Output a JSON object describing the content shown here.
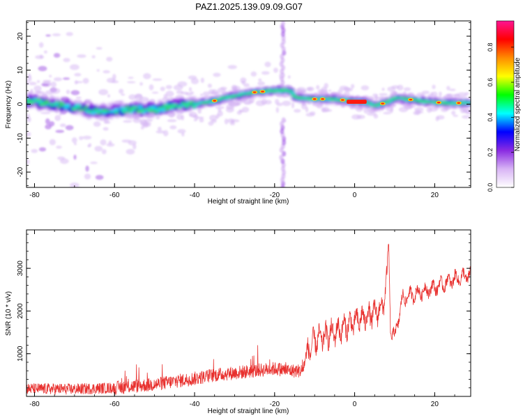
{
  "title": "PAZ1.2025.139.09.09.G07",
  "chart_data": [
    {
      "type": "heatmap",
      "xlabel": "Height of straight line (km)",
      "ylabel": "Frequency (Hz)",
      "xlim": [
        -82,
        29
      ],
      "ylim": [
        -24.5,
        24.5
      ],
      "xticks": [
        -80,
        -60,
        -40,
        -20,
        0,
        20
      ],
      "yticks": [
        -20,
        -10,
        0,
        10,
        20
      ],
      "ridge": {
        "x": [
          -82,
          -75,
          -70,
          -65,
          -60,
          -55,
          -50,
          -45,
          -40,
          -35,
          -30,
          -25,
          -20,
          -16,
          -15,
          -10,
          -5,
          0,
          3,
          5,
          8,
          10,
          15,
          20,
          25,
          29
        ],
        "freq": [
          1,
          0,
          -1,
          -2,
          -2,
          -1.5,
          -1.5,
          -0.5,
          0,
          1,
          2.5,
          3.5,
          4,
          4,
          2,
          1.5,
          1.5,
          0.8,
          0.5,
          -0.5,
          0.5,
          1.8,
          1.2,
          0.5,
          0.3,
          0.5
        ]
      },
      "colorbar": {
        "label": "Normalized spectral amplitude",
        "min": 0.0,
        "max": 0.95,
        "ticks": [
          "0.0",
          "0.2",
          "0.4",
          "0.6",
          "0.8"
        ],
        "colormap": [
          "#ffffff",
          "#d8b4f5",
          "#8a2be2",
          "#0000ff",
          "#00ffff",
          "#00ff00",
          "#ffff00",
          "#ff8c00",
          "#ff0000",
          "#ff1493"
        ]
      }
    },
    {
      "type": "line",
      "xlabel": "Height of straight line (km)",
      "ylabel": "SNR (10 * v/v)",
      "xlim": [
        -82,
        29
      ],
      "ylim": [
        0,
        3900
      ],
      "xticks": [
        -80,
        -60,
        -40,
        -20,
        0,
        20
      ],
      "yticks": [
        1000,
        2000,
        3000
      ],
      "color": "#e8302e",
      "trend": {
        "x": [
          -82,
          -70,
          -60,
          -50,
          -45,
          -40,
          -35,
          -30,
          -25,
          -20,
          -16,
          -13,
          -12,
          -10,
          -5,
          0,
          5,
          7,
          8,
          8.5,
          9,
          10,
          12,
          15,
          20,
          25,
          29
        ],
        "snr": [
          180,
          170,
          200,
          280,
          350,
          420,
          500,
          550,
          600,
          650,
          600,
          600,
          1000,
          1300,
          1500,
          1750,
          1950,
          2100,
          2700,
          3600,
          1500,
          1400,
          2300,
          2400,
          2550,
          2750,
          2850
        ]
      }
    }
  ]
}
